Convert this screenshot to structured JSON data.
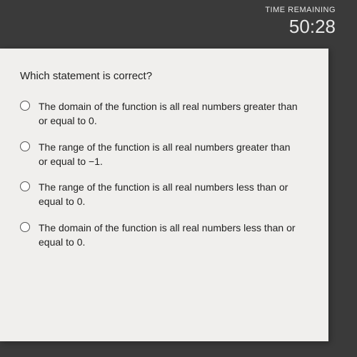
{
  "header": {
    "time_label": "TIME REMAINING",
    "time_value": "50:28"
  },
  "question": {
    "prompt": "Which statement is correct?",
    "options": [
      "The domain of the function is all real numbers greater than or equal to 0.",
      "The range of the function is all real numbers greater than or equal to −1.",
      "The range of the function is all real numbers less than or equal to 0.",
      "The domain of the function is all real numbers less than or equal to 0."
    ]
  },
  "colors": {
    "background": "#3a3a3a",
    "panel": "#f0efed",
    "text": "#222222",
    "header_text": "#e8e8e8"
  }
}
